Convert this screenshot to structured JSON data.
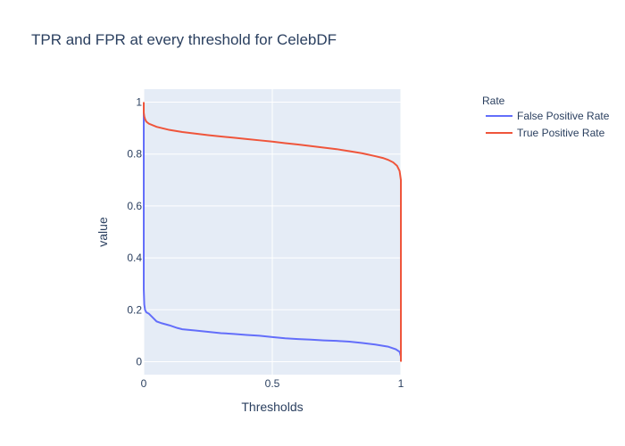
{
  "chart_data": {
    "type": "line",
    "title": "TPR and FPR at every threshold for CelebDF",
    "xlabel": "Thresholds",
    "ylabel": "value",
    "xlim": [
      0,
      1
    ],
    "ylim": [
      -0.05,
      1.05
    ],
    "x_ticks": [
      "0",
      "0.5",
      "1"
    ],
    "y_ticks": [
      "0",
      "0.2",
      "0.4",
      "0.6",
      "0.8",
      "1"
    ],
    "legend_title": "Rate",
    "legend_position": "top-right",
    "grid": true,
    "plot_background": "#e5ecf6",
    "series": [
      {
        "name": "False Positive Rate",
        "color": "#636efa",
        "x": [
          0,
          0,
          0.002,
          0.005,
          0.01,
          0.02,
          0.03,
          0.05,
          0.07,
          0.1,
          0.13,
          0.15,
          0.2,
          0.25,
          0.3,
          0.35,
          0.4,
          0.45,
          0.5,
          0.55,
          0.6,
          0.65,
          0.7,
          0.75,
          0.8,
          0.85,
          0.9,
          0.95,
          0.98,
          0.995,
          1,
          1
        ],
        "y": [
          1,
          0.28,
          0.22,
          0.2,
          0.19,
          0.185,
          0.175,
          0.155,
          0.148,
          0.14,
          0.13,
          0.125,
          0.12,
          0.115,
          0.11,
          0.107,
          0.103,
          0.1,
          0.095,
          0.09,
          0.087,
          0.085,
          0.082,
          0.08,
          0.077,
          0.072,
          0.066,
          0.058,
          0.048,
          0.038,
          0.02,
          0
        ]
      },
      {
        "name": "True Positive Rate",
        "color": "#ef553b",
        "x": [
          0,
          0,
          0.002,
          0.005,
          0.01,
          0.02,
          0.05,
          0.1,
          0.15,
          0.2,
          0.25,
          0.3,
          0.35,
          0.4,
          0.45,
          0.5,
          0.55,
          0.6,
          0.65,
          0.7,
          0.75,
          0.8,
          0.85,
          0.9,
          0.93,
          0.95,
          0.97,
          0.985,
          0.995,
          1,
          1,
          1
        ],
        "y": [
          1,
          0.96,
          0.945,
          0.935,
          0.925,
          0.917,
          0.905,
          0.893,
          0.885,
          0.879,
          0.873,
          0.868,
          0.863,
          0.858,
          0.853,
          0.848,
          0.842,
          0.837,
          0.831,
          0.825,
          0.819,
          0.811,
          0.803,
          0.792,
          0.785,
          0.778,
          0.768,
          0.755,
          0.735,
          0.7,
          0.1,
          0
        ]
      }
    ]
  }
}
